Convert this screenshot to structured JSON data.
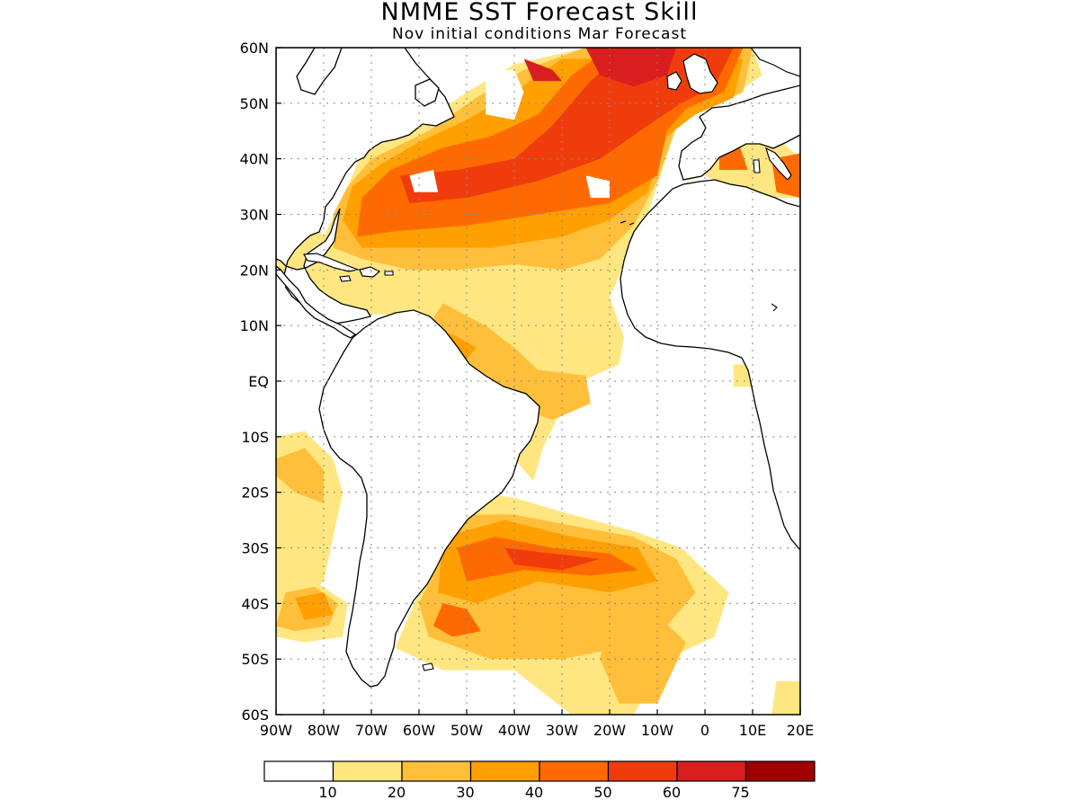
{
  "title": "NMME SST Forecast Skill",
  "subtitle": "Nov initial conditions  Mar Forecast",
  "map": {
    "lon_range": [
      -90,
      20
    ],
    "lat_range": [
      -60,
      60
    ],
    "lat_ticks": [
      {
        "value": 60,
        "label": "60N"
      },
      {
        "value": 50,
        "label": "50N"
      },
      {
        "value": 40,
        "label": "40N"
      },
      {
        "value": 30,
        "label": "30N"
      },
      {
        "value": 20,
        "label": "20N"
      },
      {
        "value": 10,
        "label": "10N"
      },
      {
        "value": 0,
        "label": "EQ"
      },
      {
        "value": -10,
        "label": "10S"
      },
      {
        "value": -20,
        "label": "20S"
      },
      {
        "value": -30,
        "label": "30S"
      },
      {
        "value": -40,
        "label": "40S"
      },
      {
        "value": -50,
        "label": "50S"
      },
      {
        "value": -60,
        "label": "60S"
      }
    ],
    "lon_ticks": [
      {
        "value": -90,
        "label": "90W"
      },
      {
        "value": -80,
        "label": "80W"
      },
      {
        "value": -70,
        "label": "70W"
      },
      {
        "value": -60,
        "label": "60W"
      },
      {
        "value": -50,
        "label": "50W"
      },
      {
        "value": -40,
        "label": "40W"
      },
      {
        "value": -30,
        "label": "30W"
      },
      {
        "value": -20,
        "label": "20W"
      },
      {
        "value": -10,
        "label": "10W"
      },
      {
        "value": 0,
        "label": "0"
      },
      {
        "value": 10,
        "label": "10E"
      },
      {
        "value": 20,
        "label": "20E"
      }
    ],
    "grid": "dotted",
    "colors": [
      "#ffffff",
      "#ffe680",
      "#ffbf3a",
      "#ff9f00",
      "#ff6a00",
      "#f03c0c",
      "#d81e1e",
      "#a00000"
    ],
    "levels": [
      10,
      20,
      30,
      40,
      50,
      60,
      75
    ],
    "skill_regions": [
      {
        "level": 1,
        "points": [
          [
            -72,
            41
          ],
          [
            -60,
            46
          ],
          [
            -50,
            52
          ],
          [
            -40,
            57
          ],
          [
            -25,
            60
          ],
          [
            10,
            60
          ],
          [
            12,
            55
          ],
          [
            5,
            51
          ],
          [
            -5,
            48
          ],
          [
            -9,
            38
          ],
          [
            -12,
            30
          ],
          [
            -16,
            23
          ],
          [
            -20,
            15
          ],
          [
            -17,
            8
          ],
          [
            -18,
            3
          ],
          [
            -26,
            0
          ],
          [
            -30,
            -5
          ],
          [
            -34,
            -12
          ],
          [
            -36,
            -18
          ],
          [
            -44,
            -10
          ],
          [
            -50,
            0
          ],
          [
            -58,
            8
          ],
          [
            -65,
            12
          ],
          [
            -72,
            12
          ],
          [
            -80,
            15
          ],
          [
            -88,
            17
          ],
          [
            -90,
            22
          ],
          [
            -90,
            30
          ],
          [
            -84,
            31
          ],
          [
            -80,
            26
          ],
          [
            -76,
            33
          ]
        ]
      },
      {
        "level": 1,
        "points": [
          [
            -48,
            -20
          ],
          [
            -40,
            -21
          ],
          [
            -28,
            -24
          ],
          [
            -15,
            -27
          ],
          [
            -5,
            -30
          ],
          [
            5,
            -38
          ],
          [
            2,
            -46
          ],
          [
            -8,
            -50
          ],
          [
            -15,
            -60
          ],
          [
            -28,
            -60
          ],
          [
            -40,
            -52
          ],
          [
            -55,
            -52
          ],
          [
            -65,
            -48
          ],
          [
            -60,
            -38
          ],
          [
            -53,
            -32
          ]
        ]
      },
      {
        "level": 1,
        "points": [
          [
            -90,
            -10
          ],
          [
            -84,
            -9
          ],
          [
            -78,
            -14
          ],
          [
            -76,
            -20
          ],
          [
            -78,
            -28
          ],
          [
            -80,
            -36
          ],
          [
            -85,
            -40
          ],
          [
            -90,
            -42
          ]
        ]
      },
      {
        "level": 1,
        "points": [
          [
            -90,
            -37
          ],
          [
            -82,
            -36
          ],
          [
            -75,
            -40
          ],
          [
            -76,
            -46
          ],
          [
            -84,
            -47
          ],
          [
            -90,
            -46
          ]
        ]
      },
      {
        "level": 1,
        "points": [
          [
            -4,
            36
          ],
          [
            4,
            42
          ],
          [
            15,
            44
          ],
          [
            20,
            40
          ],
          [
            20,
            33
          ],
          [
            10,
            33
          ],
          [
            0,
            37
          ]
        ]
      },
      {
        "level": 1,
        "points": [
          [
            6,
            3
          ],
          [
            10,
            3
          ],
          [
            10,
            -1
          ],
          [
            6,
            -1
          ]
        ]
      },
      {
        "level": 1,
        "points": [
          [
            15,
            -54
          ],
          [
            20,
            -54
          ],
          [
            20,
            -60
          ],
          [
            14,
            -60
          ]
        ]
      },
      {
        "level": 2,
        "points": [
          [
            -70,
            40
          ],
          [
            -58,
            45
          ],
          [
            -48,
            51
          ],
          [
            -38,
            56
          ],
          [
            -25,
            60
          ],
          [
            10,
            60
          ],
          [
            8,
            52
          ],
          [
            0,
            49
          ],
          [
            -6,
            46
          ],
          [
            -10,
            36
          ],
          [
            -15,
            28
          ],
          [
            -22,
            22
          ],
          [
            -30,
            20
          ],
          [
            -40,
            21
          ],
          [
            -52,
            20
          ],
          [
            -62,
            20
          ],
          [
            -72,
            22
          ],
          [
            -78,
            24
          ],
          [
            -78,
            30
          ],
          [
            -75,
            35
          ]
        ]
      },
      {
        "level": 2,
        "points": [
          [
            -55,
            14
          ],
          [
            -46,
            10
          ],
          [
            -40,
            6
          ],
          [
            -35,
            2
          ],
          [
            -25,
            1
          ],
          [
            -24,
            -4
          ],
          [
            -32,
            -7
          ],
          [
            -42,
            -4
          ],
          [
            -52,
            6
          ],
          [
            -58,
            10
          ]
        ]
      },
      {
        "level": 2,
        "points": [
          [
            -52,
            -24
          ],
          [
            -40,
            -24
          ],
          [
            -28,
            -26
          ],
          [
            -15,
            -28
          ],
          [
            -6,
            -32
          ],
          [
            -2,
            -38
          ],
          [
            -8,
            -44
          ],
          [
            -18,
            -48
          ],
          [
            -30,
            -50
          ],
          [
            -45,
            -50
          ],
          [
            -58,
            -46
          ],
          [
            -60,
            -40
          ],
          [
            -56,
            -33
          ]
        ]
      },
      {
        "level": 2,
        "points": [
          [
            -88,
            -38
          ],
          [
            -82,
            -37
          ],
          [
            -77,
            -40
          ],
          [
            -79,
            -44
          ],
          [
            -86,
            -45
          ],
          [
            -90,
            -44
          ]
        ]
      },
      {
        "level": 2,
        "points": [
          [
            -90,
            -14
          ],
          [
            -84,
            -12
          ],
          [
            -80,
            -16
          ],
          [
            -80,
            -22
          ],
          [
            -86,
            -20
          ],
          [
            -90,
            -17
          ]
        ]
      },
      {
        "level": 2,
        "points": [
          [
            -20,
            -43
          ],
          [
            -10,
            -42
          ],
          [
            -4,
            -47
          ],
          [
            -10,
            -58
          ],
          [
            -18,
            -58
          ],
          [
            -22,
            -50
          ]
        ]
      },
      {
        "level": 3,
        "points": [
          [
            -68,
            39
          ],
          [
            -60,
            43
          ],
          [
            -50,
            47
          ],
          [
            -40,
            52
          ],
          [
            -30,
            58
          ],
          [
            8,
            58
          ],
          [
            6,
            51
          ],
          [
            -2,
            48
          ],
          [
            -8,
            44
          ],
          [
            -12,
            34
          ],
          [
            -20,
            29
          ],
          [
            -30,
            26
          ],
          [
            -45,
            24
          ],
          [
            -60,
            24
          ],
          [
            -72,
            24
          ],
          [
            -76,
            29
          ],
          [
            -74,
            35
          ]
        ]
      },
      {
        "level": 3,
        "points": [
          [
            -55,
            -28
          ],
          [
            -42,
            -25
          ],
          [
            -28,
            -28
          ],
          [
            -14,
            -30
          ],
          [
            -10,
            -36
          ],
          [
            -20,
            -38
          ],
          [
            -35,
            -36
          ],
          [
            -48,
            -40
          ],
          [
            -56,
            -38
          ]
        ]
      },
      {
        "level": 3,
        "points": [
          [
            -58,
            10
          ],
          [
            -52,
            8
          ],
          [
            -48,
            6
          ],
          [
            -50,
            4
          ],
          [
            -56,
            6
          ]
        ]
      },
      {
        "level": 3,
        "points": [
          [
            -86,
            -39
          ],
          [
            -80,
            -38
          ],
          [
            -78,
            -42
          ],
          [
            -84,
            -43
          ]
        ]
      },
      {
        "level": 4,
        "points": [
          [
            -66,
            38
          ],
          [
            -55,
            42
          ],
          [
            -45,
            44
          ],
          [
            -35,
            48
          ],
          [
            -28,
            55
          ],
          [
            -20,
            60
          ],
          [
            8,
            60
          ],
          [
            4,
            52
          ],
          [
            -4,
            49
          ],
          [
            -8,
            45
          ],
          [
            -10,
            37
          ],
          [
            -20,
            32
          ],
          [
            -35,
            30
          ],
          [
            -50,
            28
          ],
          [
            -65,
            27
          ],
          [
            -73,
            26
          ],
          [
            -72,
            33
          ]
        ]
      },
      {
        "level": 4,
        "points": [
          [
            -52,
            -30
          ],
          [
            -44,
            -28
          ],
          [
            -32,
            -30
          ],
          [
            -20,
            -31
          ],
          [
            -14,
            -34
          ],
          [
            -24,
            -35
          ],
          [
            -38,
            -34
          ],
          [
            -50,
            -36
          ]
        ]
      },
      {
        "level": 4,
        "points": [
          [
            -55,
            -40
          ],
          [
            -50,
            -41
          ],
          [
            -47,
            -45
          ],
          [
            -53,
            -46
          ],
          [
            -57,
            -44
          ]
        ]
      },
      {
        "level": 4,
        "points": [
          [
            3,
            42
          ],
          [
            7,
            43
          ],
          [
            9,
            38
          ],
          [
            3,
            38
          ]
        ]
      },
      {
        "level": 4,
        "points": [
          [
            14,
            40
          ],
          [
            20,
            41
          ],
          [
            20,
            33
          ],
          [
            15,
            34
          ]
        ]
      },
      {
        "level": 5,
        "points": [
          [
            -64,
            37
          ],
          [
            -52,
            38
          ],
          [
            -40,
            40
          ],
          [
            -32,
            46
          ],
          [
            -24,
            54
          ],
          [
            -16,
            60
          ],
          [
            6,
            60
          ],
          [
            2,
            53
          ],
          [
            -5,
            50
          ],
          [
            -12,
            46
          ],
          [
            -22,
            40
          ],
          [
            -35,
            36
          ],
          [
            -50,
            33
          ],
          [
            -62,
            32
          ]
        ]
      },
      {
        "level": 5,
        "points": [
          [
            -42,
            -30
          ],
          [
            -32,
            -31
          ],
          [
            -22,
            -32
          ],
          [
            -30,
            -34
          ],
          [
            -40,
            -33
          ]
        ]
      },
      {
        "level": 6,
        "points": [
          [
            -25,
            60
          ],
          [
            -6,
            60
          ],
          [
            -8,
            55
          ],
          [
            -15,
            53
          ],
          [
            -22,
            55
          ]
        ]
      },
      {
        "level": 6,
        "points": [
          [
            -38,
            58
          ],
          [
            -32,
            56
          ],
          [
            -30,
            54
          ],
          [
            -36,
            54
          ]
        ]
      },
      {
        "level": 0,
        "points": [
          [
            -46,
            56
          ],
          [
            -40,
            56
          ],
          [
            -38,
            52
          ],
          [
            -40,
            47
          ],
          [
            -46,
            48
          ]
        ]
      },
      {
        "level": 0,
        "points": [
          [
            -62,
            37
          ],
          [
            -57,
            38
          ],
          [
            -56,
            34
          ],
          [
            -61,
            34
          ]
        ]
      },
      {
        "level": 0,
        "points": [
          [
            -25,
            37
          ],
          [
            -20,
            36
          ],
          [
            -20,
            33
          ],
          [
            -24,
            33
          ]
        ]
      }
    ]
  },
  "colorbar": {
    "labels": [
      "10",
      "20",
      "30",
      "40",
      "50",
      "60",
      "75"
    ]
  }
}
